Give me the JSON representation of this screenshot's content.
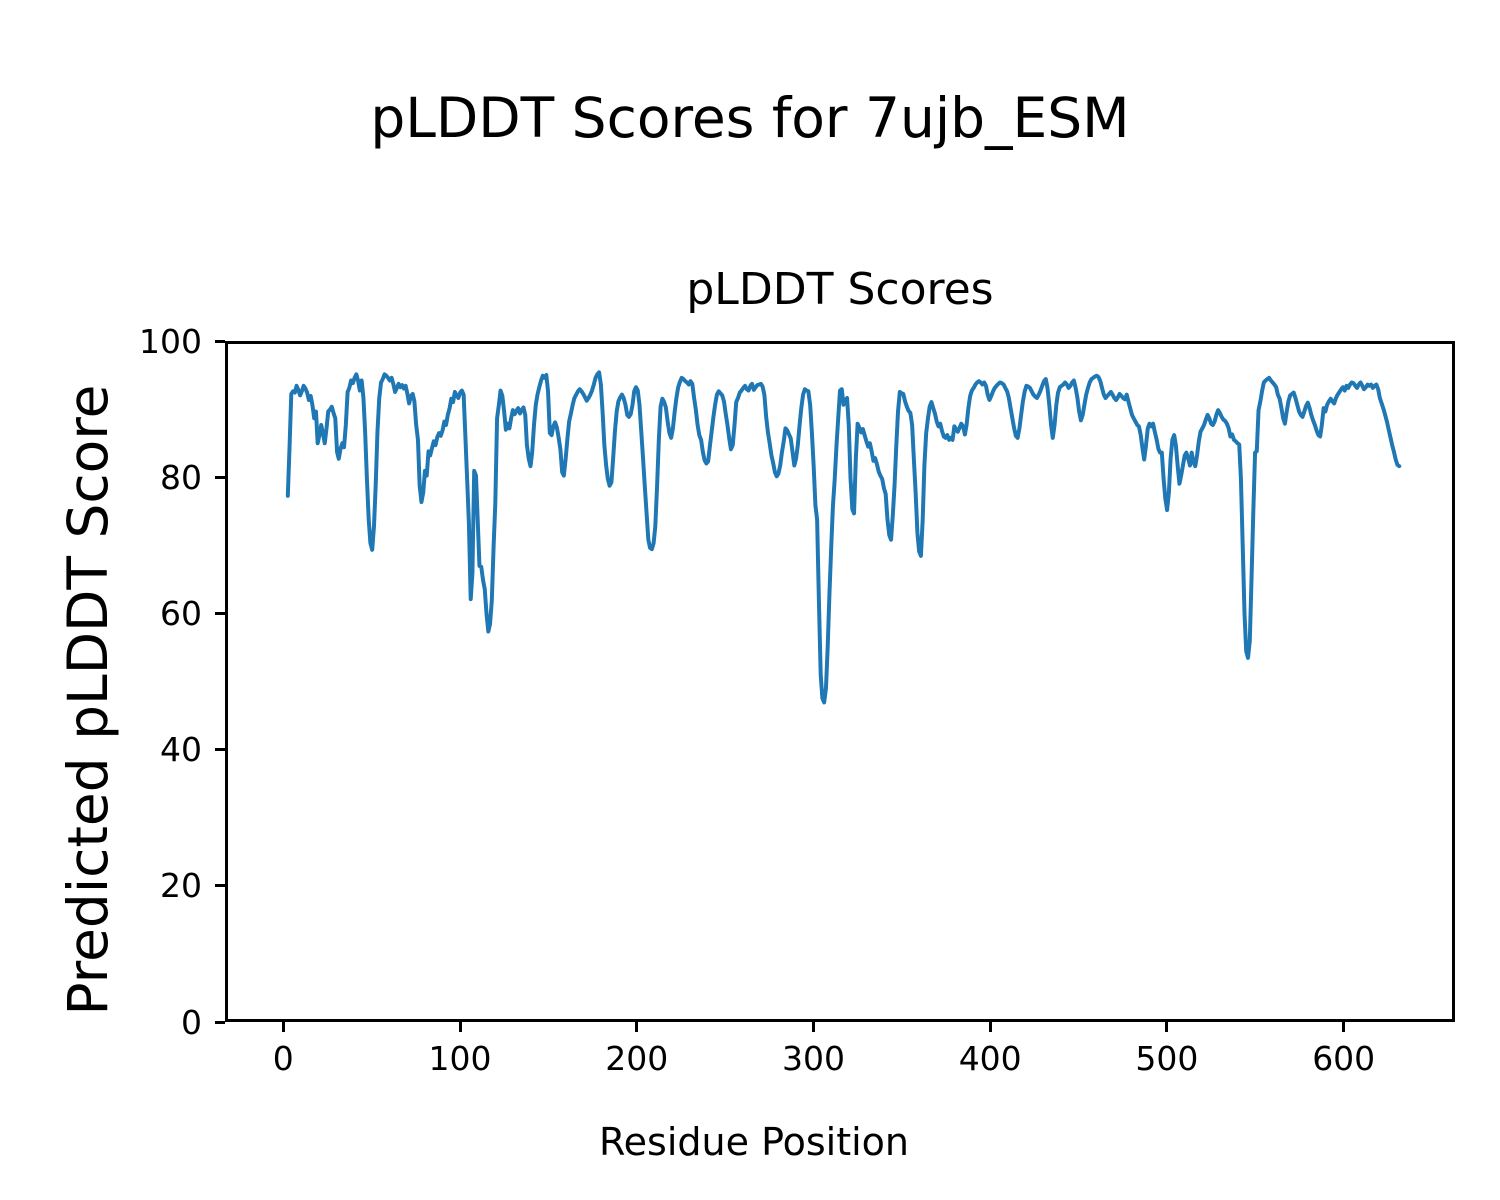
{
  "chart_data": {
    "type": "line",
    "title": "pLDDT Scores for 7ujb_ESM",
    "axes_title": "pLDDT Scores",
    "xlabel": "Residue Position",
    "ylabel": "Predicted pLDDT Score",
    "xticks": [
      0,
      100,
      200,
      300,
      400,
      500,
      600
    ],
    "yticks": [
      0,
      20,
      40,
      60,
      80,
      100
    ],
    "xlim": [
      -33,
      663
    ],
    "ylim": [
      0,
      100
    ],
    "grid": false,
    "legend": "none",
    "line_color": "#1f77b4",
    "line_width": 4,
    "x": {
      "start": 1,
      "step": 1,
      "count": 633
    },
    "y": [
      77.5,
      85,
      92.6,
      93,
      92.8,
      93.8,
      93.2,
      92.4,
      93,
      93.8,
      93.4,
      92.8,
      91.7,
      92.3,
      91,
      89,
      90,
      85.3,
      86.5,
      88,
      86.8,
      85.3,
      87.5,
      90,
      90.3,
      90.7,
      89.8,
      89,
      84,
      83,
      84.5,
      85.3,
      84.7,
      88,
      92.9,
      93.5,
      94.6,
      94.2,
      95,
      95.5,
      94.5,
      93.1,
      94.6,
      92,
      87,
      80,
      74,
      70.5,
      69.5,
      73,
      79,
      87,
      92,
      94.3,
      94.8,
      95.5,
      95.3,
      95,
      94.6,
      95,
      94.1,
      92.9,
      93.5,
      94.1,
      93.6,
      93.9,
      93.4,
      93.8,
      92.6,
      91.2,
      92.3,
      92.6,
      91.5,
      88,
      85.8,
      79,
      76.6,
      78,
      81.2,
      80.5,
      84.1,
      83.5,
      84.6,
      85.6,
      85,
      86.2,
      86.8,
      86.4,
      87.2,
      88.5,
      88,
      89.5,
      90.5,
      91.9,
      91.4,
      92.9,
      92.4,
      92,
      92.8,
      93.1,
      92.5,
      86.1,
      80,
      73.4,
      62.2,
      66,
      81.2,
      80.5,
      74,
      67.1,
      67,
      65,
      63.7,
      60,
      57.4,
      58.5,
      62,
      70,
      76.3,
      89,
      91,
      93.1,
      92.3,
      90,
      87.3,
      88.2,
      87.5,
      89,
      90.2,
      89.6,
      90.1,
      90.5,
      89.7,
      90.2,
      90.6,
      89.5,
      85,
      83,
      81.9,
      84,
      88,
      91,
      92.5,
      93.6,
      94.6,
      95.3,
      95,
      95.4,
      93,
      86.8,
      86.5,
      87.8,
      88.4,
      87.6,
      86.2,
      84.4,
      81,
      80.5,
      83,
      86,
      88.5,
      89.7,
      91,
      92,
      92.5,
      93,
      93.3,
      93,
      92.6,
      92.1,
      91.6,
      92,
      92.5,
      93.1,
      94,
      95,
      95.5,
      95.8,
      94,
      90,
      85,
      82,
      80,
      79,
      79.5,
      83,
      87,
      90,
      91.5,
      92.1,
      92.5,
      92,
      91,
      89.5,
      89.2,
      89.6,
      91,
      93,
      93.6,
      93.1,
      91,
      87,
      83,
      79,
      75,
      71,
      69.8,
      69.6,
      70.5,
      73,
      79,
      86,
      90.7,
      91.9,
      91.4,
      90.6,
      88.5,
      86.8,
      86.1,
      87.5,
      90,
      92,
      93.6,
      94.4,
      95,
      94.8,
      94.5,
      94.3,
      94,
      94.5,
      94.1,
      92.1,
      90.3,
      88,
      86.5,
      85.8,
      84,
      82.8,
      82.3,
      82.6,
      84.8,
      87,
      89.2,
      91,
      92.5,
      93,
      92.7,
      92.4,
      91.5,
      89.7,
      88,
      86,
      84.4,
      85,
      88,
      91.4,
      92,
      92.8,
      93.1,
      93.5,
      93.8,
      93.3,
      93.1,
      93.8,
      94.1,
      93.2,
      93.6,
      93.9,
      94,
      94.1,
      93.7,
      92.5,
      89.2,
      87,
      85.3,
      83.5,
      82.4,
      81,
      80.4,
      80.8,
      82,
      84,
      85.5,
      87.5,
      87.2,
      86.6,
      86,
      84,
      82,
      83,
      85,
      88,
      90.5,
      92.5,
      93.3,
      93.1,
      93,
      91,
      87,
      82,
      76.1,
      74,
      62,
      51,
      47.5,
      46.9,
      49,
      55,
      63,
      70,
      76,
      80,
      85,
      89,
      93.1,
      93.3,
      91,
      91.7,
      92,
      88,
      80,
      75.5,
      74.9,
      83,
      88.2,
      87.6,
      86.9,
      87.4,
      86.5,
      85.6,
      84.8,
      85.3,
      84.1,
      82.7,
      83.1,
      82.2,
      81.1,
      80.5,
      80,
      78.6,
      77.8,
      74,
      71.7,
      71,
      74.5,
      79,
      85,
      90,
      92.9,
      92.7,
      92.6,
      91.5,
      90.7,
      90.1,
      89.8,
      88,
      83,
      78,
      72,
      69.3,
      68.6,
      74,
      82,
      86.8,
      89,
      90.7,
      91.4,
      90.5,
      89.7,
      88.5,
      87.8,
      88.2,
      87.1,
      86.3,
      86.1,
      86.5,
      85.8,
      86.1,
      85.8,
      87.8,
      87.4,
      87,
      87.6,
      88.2,
      87.8,
      86.6,
      88,
      90.5,
      92.3,
      93.1,
      93.5,
      94,
      94.3,
      94.5,
      94.3,
      94,
      94.3,
      93.8,
      92.5,
      91.7,
      92.3,
      93,
      93.5,
      93.8,
      94.1,
      94.3,
      94.2,
      94,
      93.5,
      93,
      92,
      90.5,
      89,
      87.5,
      86.4,
      86.1,
      87.5,
      89.5,
      91.5,
      93,
      93.8,
      93.7,
      93.5,
      93,
      92.5,
      92.2,
      92,
      92.5,
      93.1,
      93.8,
      94.5,
      94.8,
      93.5,
      91,
      88,
      86.1,
      88,
      91,
      92.8,
      93.6,
      93.8,
      94,
      94.3,
      94,
      93.5,
      93.8,
      94.3,
      94.6,
      93.5,
      92,
      90,
      88.7,
      89.5,
      91,
      92.5,
      93.5,
      94.3,
      94.8,
      95,
      95.2,
      95.3,
      95.1,
      94.5,
      93.5,
      92.5,
      92,
      92.3,
      92.6,
      92.9,
      92.5,
      92,
      91.7,
      92.1,
      92.6,
      92.3,
      92,
      91.8,
      92.5,
      91.5,
      90.5,
      89.5,
      89,
      88.5,
      88,
      87.8,
      86.5,
      84.5,
      82.9,
      85,
      87.5,
      88.2,
      87.8,
      88.2,
      87,
      85.9,
      84.5,
      83.9,
      83.9,
      80,
      77.1,
      75.4,
      78,
      83,
      85.8,
      86.5,
      85,
      82,
      79.3,
      80.5,
      82,
      83.5,
      83.9,
      83,
      82,
      83.9,
      82.5,
      81.9,
      83.5,
      85.5,
      87,
      87.5,
      88,
      88.8,
      89.5,
      89,
      88.2,
      88,
      88.5,
      89.5,
      90.2,
      89.8,
      89.2,
      88.8,
      88.6,
      88.2,
      87.5,
      86.3,
      86.6,
      85.8,
      85.6,
      85.3,
      85.1,
      80,
      70,
      60,
      54.5,
      53.5,
      56,
      65,
      75,
      83.9,
      84.1,
      90.2,
      91.5,
      93,
      94.3,
      94.6,
      94.8,
      95,
      94.6,
      94.3,
      94,
      93.6,
      92.5,
      91.9,
      90.5,
      89,
      88.2,
      90,
      91.5,
      92.4,
      92.6,
      92.8,
      92,
      91,
      90,
      89.5,
      89.2,
      90,
      90.8,
      91.3,
      90.5,
      89.5,
      88.7,
      88,
      87.2,
      86.5,
      86.3,
      88,
      90.5,
      90,
      91,
      91.5,
      91.9,
      91.5,
      91.2,
      92,
      92.5,
      92.9,
      93.3,
      93.6,
      93.1,
      93.8,
      93.5,
      94,
      94.3,
      94.2,
      93.8,
      93.5,
      94,
      94.3,
      93.8,
      93.3,
      93.6,
      94,
      93.8,
      94,
      93.5,
      93.8,
      94,
      93.3,
      92,
      91.2,
      90.4,
      89.5,
      88.5,
      87.3,
      86.2,
      85,
      84,
      82.9,
      82.1,
      81.9
    ]
  }
}
